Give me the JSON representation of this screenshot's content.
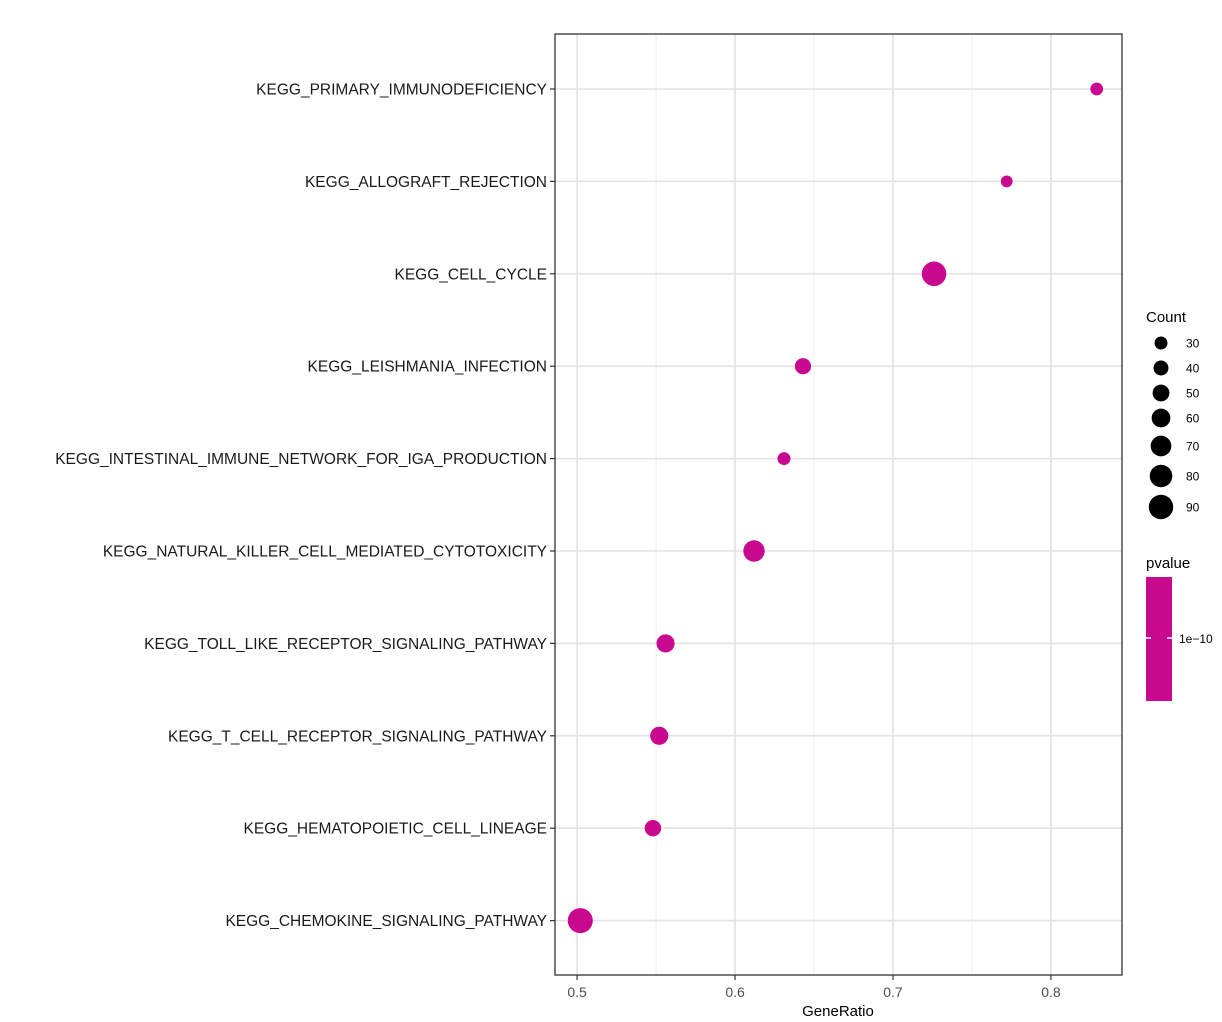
{
  "chart_data": {
    "type": "scatter",
    "title": "",
    "xlabel": "GeneRatio",
    "ylabel": "",
    "xlim": [
      0.486,
      0.845
    ],
    "xticks": [
      0.5,
      0.6,
      0.7,
      0.8
    ],
    "xtick_labels": [
      "0.5",
      "0.6",
      "0.7",
      "0.8"
    ],
    "grid": true,
    "point_color": "#C8088F",
    "categories": [
      "KEGG_PRIMARY_IMMUNODEFICIENCY",
      "KEGG_ALLOGRAFT_REJECTION",
      "KEGG_CELL_CYCLE",
      "KEGG_LEISHMANIA_INFECTION",
      "KEGG_INTESTINAL_IMMUNE_NETWORK_FOR_IGA_PRODUCTION",
      "KEGG_NATURAL_KILLER_CELL_MEDIATED_CYTOTOXICITY",
      "KEGG_TOLL_LIKE_RECEPTOR_SIGNALING_PATHWAY",
      "KEGG_T_CELL_RECEPTOR_SIGNALING_PATHWAY",
      "KEGG_HEMATOPOIETIC_CELL_LINEAGE",
      "KEGG_CHEMOKINE_SIGNALING_PATHWAY"
    ],
    "points": [
      {
        "term": "KEGG_PRIMARY_IMMUNODEFICIENCY",
        "gene_ratio": 0.829,
        "count": 29
      },
      {
        "term": "KEGG_ALLOGRAFT_REJECTION",
        "gene_ratio": 0.772,
        "count": 24
      },
      {
        "term": "KEGG_CELL_CYCLE",
        "gene_ratio": 0.726,
        "count": 90
      },
      {
        "term": "KEGG_LEISHMANIA_INFECTION",
        "gene_ratio": 0.643,
        "count": 47
      },
      {
        "term": "KEGG_INTESTINAL_IMMUNE_NETWORK_FOR_IGA_PRODUCTION",
        "gene_ratio": 0.631,
        "count": 30
      },
      {
        "term": "KEGG_NATURAL_KILLER_CELL_MEDIATED_CYTOTOXICITY",
        "gene_ratio": 0.612,
        "count": 74
      },
      {
        "term": "KEGG_TOLL_LIKE_RECEPTOR_SIGNALING_PATHWAY",
        "gene_ratio": 0.556,
        "count": 57
      },
      {
        "term": "KEGG_T_CELL_RECEPTOR_SIGNALING_PATHWAY",
        "gene_ratio": 0.552,
        "count": 57
      },
      {
        "term": "KEGG_HEMATOPOIETIC_CELL_LINEAGE",
        "gene_ratio": 0.548,
        "count": 48
      },
      {
        "term": "KEGG_CHEMOKINE_SIGNALING_PATHWAY",
        "gene_ratio": 0.502,
        "count": 93
      }
    ],
    "legend_size": {
      "title": "Count",
      "values": [
        30,
        40,
        50,
        60,
        70,
        80,
        90
      ],
      "labels": [
        "30",
        "40",
        "50",
        "60",
        "70",
        "80",
        "90"
      ],
      "color": "#000000"
    },
    "legend_color": {
      "title": "pvalue",
      "tick_label": "1e−10",
      "color": "#C8088F"
    },
    "legend_placement": "right"
  }
}
